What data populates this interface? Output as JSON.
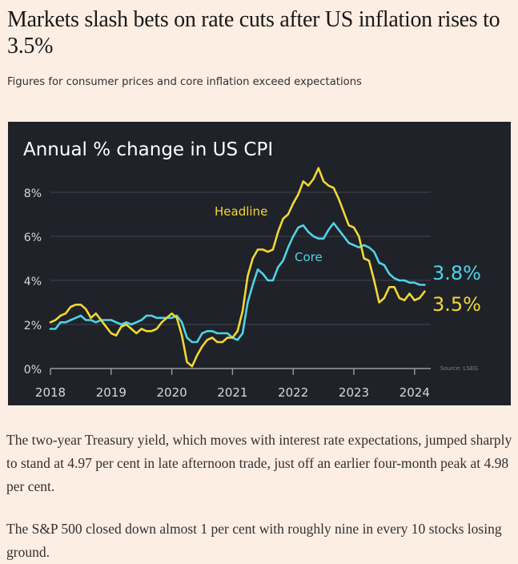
{
  "article": {
    "headline": "Markets slash bets on rate cuts after US inflation rises to 3.5%",
    "standfirst": "Figures for consumer prices and core inflation exceed expectations",
    "paragraphs": [
      "The two-year Treasury yield, which moves with interest rate expectations, jumped sharply to stand at 4.97 per cent in late afternoon trade, just off an earlier four-month peak at 4.98 per cent.",
      "The S&P 500 closed down almost 1 per cent with roughly nine in every 10 stocks losing ground."
    ]
  },
  "colors": {
    "page_background": "#fdeee3",
    "chart_background": "#1f2229",
    "headline_series": "#f2d833",
    "core_series": "#4fd3e8",
    "gridline": "#3a3e47",
    "axis": "#9a9ca1",
    "axis_text": "#d7d8da",
    "source_text": "#7d8088"
  },
  "chart_data": {
    "type": "line",
    "title": "Annual % change in US CPI",
    "xlabel": "",
    "ylabel": "",
    "source": "Source: LSEG",
    "x_start": "2018-01",
    "x_step": "month",
    "xlim": [
      2018,
      2024.25
    ],
    "ylim": [
      0,
      9
    ],
    "y_ticks": [
      0,
      2,
      4,
      6,
      8
    ],
    "y_tick_labels": [
      "0%",
      "2%",
      "4%",
      "6%",
      "8%"
    ],
    "x_ticks": [
      2018,
      2019,
      2020,
      2021,
      2022,
      2023,
      2024
    ],
    "x_tick_labels": [
      "2018",
      "2019",
      "2020",
      "2021",
      "2022",
      "2023",
      "2024"
    ],
    "grid": true,
    "legend": "inline labels",
    "series": [
      {
        "name": "Headline",
        "label": "Headline",
        "end_label": "3.5%",
        "color_key": "headline_series",
        "values": [
          2.1,
          2.2,
          2.4,
          2.5,
          2.8,
          2.9,
          2.9,
          2.7,
          2.3,
          2.5,
          2.2,
          1.9,
          1.6,
          1.5,
          1.9,
          2.0,
          1.8,
          1.6,
          1.8,
          1.7,
          1.7,
          1.8,
          2.1,
          2.3,
          2.5,
          2.3,
          1.5,
          0.3,
          0.1,
          0.6,
          1.0,
          1.3,
          1.4,
          1.2,
          1.2,
          1.4,
          1.4,
          1.7,
          2.6,
          4.2,
          5.0,
          5.4,
          5.4,
          5.3,
          5.4,
          6.2,
          6.8,
          7.0,
          7.5,
          7.9,
          8.5,
          8.3,
          8.6,
          9.1,
          8.5,
          8.3,
          8.2,
          7.7,
          7.1,
          6.5,
          6.4,
          6.0,
          5.0,
          4.9,
          4.0,
          3.0,
          3.2,
          3.7,
          3.7,
          3.2,
          3.1,
          3.4,
          3.1,
          3.2,
          3.5
        ]
      },
      {
        "name": "Core",
        "label": "Core",
        "end_label": "3.8%",
        "color_key": "core_series",
        "values": [
          1.8,
          1.8,
          2.1,
          2.1,
          2.2,
          2.3,
          2.4,
          2.2,
          2.2,
          2.1,
          2.2,
          2.2,
          2.2,
          2.1,
          2.0,
          2.1,
          2.0,
          2.1,
          2.2,
          2.4,
          2.4,
          2.3,
          2.3,
          2.3,
          2.3,
          2.4,
          2.1,
          1.4,
          1.2,
          1.2,
          1.6,
          1.7,
          1.7,
          1.6,
          1.6,
          1.6,
          1.4,
          1.3,
          1.6,
          3.0,
          3.8,
          4.5,
          4.3,
          4.0,
          4.0,
          4.6,
          4.9,
          5.5,
          6.0,
          6.4,
          6.5,
          6.2,
          6.0,
          5.9,
          5.9,
          6.3,
          6.6,
          6.3,
          6.0,
          5.7,
          5.6,
          5.5,
          5.6,
          5.5,
          5.3,
          4.8,
          4.7,
          4.3,
          4.1,
          4.0,
          4.0,
          3.9,
          3.9,
          3.8,
          3.8
        ]
      }
    ]
  }
}
